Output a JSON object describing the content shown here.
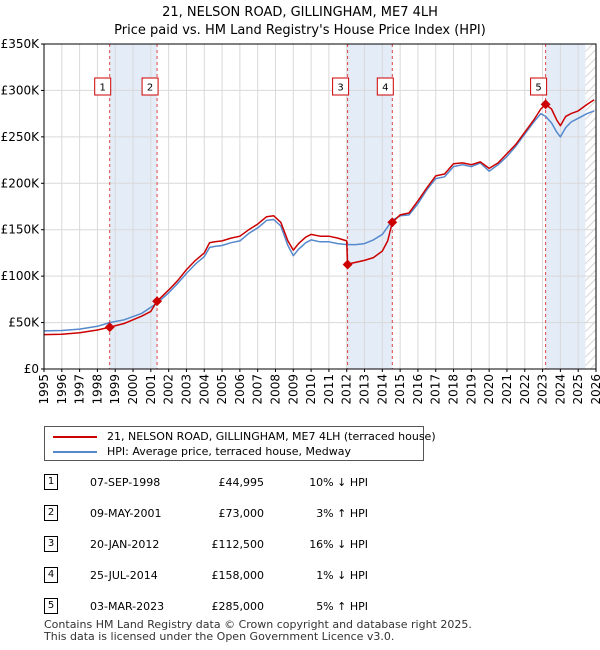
{
  "chart_data": {
    "type": "line",
    "title": "21, NELSON ROAD, GILLINGHAM, ME7 4LH",
    "subtitle": "Price paid vs. HM Land Registry's House Price Index (HPI)",
    "xlim": [
      1995,
      2026
    ],
    "ylim": [
      0,
      350000
    ],
    "yticks": [
      0,
      50000,
      100000,
      150000,
      200000,
      250000,
      300000,
      350000
    ],
    "ytick_labels": [
      "£0",
      "£50K",
      "£100K",
      "£150K",
      "£200K",
      "£250K",
      "£300K",
      "£350K"
    ],
    "xticks": [
      "1995",
      "1996",
      "1997",
      "1998",
      "1999",
      "2000",
      "2001",
      "2002",
      "2003",
      "2004",
      "2005",
      "2006",
      "2007",
      "2008",
      "2009",
      "2010",
      "2011",
      "2012",
      "2013",
      "2014",
      "2015",
      "2016",
      "2017",
      "2018",
      "2019",
      "2020",
      "2021",
      "2022",
      "2023",
      "2024",
      "2025",
      "2026"
    ],
    "grid": true,
    "shaded_periods": [
      [
        1998.69,
        2001.35
      ],
      [
        2012.05,
        2014.56
      ],
      [
        2023.17,
        2025.4
      ]
    ],
    "hatch_from": 2025.4,
    "series": [
      {
        "name": "21, NELSON ROAD, GILLINGHAM, ME7 4LH (terraced house)",
        "color": "#cc0000",
        "x": [
          1995.0,
          1996.0,
          1997.0,
          1998.0,
          1998.69,
          1999.5,
          2000.5,
          2001.0,
          2001.35,
          2002.0,
          2002.5,
          2003.0,
          2003.5,
          2004.0,
          2004.3,
          2004.6,
          2005.0,
          2005.5,
          2006.0,
          2006.5,
          2007.0,
          2007.5,
          2007.9,
          2008.3,
          2008.7,
          2009.0,
          2009.3,
          2009.7,
          2010.0,
          2010.5,
          2011.0,
          2011.5,
          2012.0,
          2012.05,
          2012.3,
          2013.0,
          2013.5,
          2014.0,
          2014.3,
          2014.56,
          2015.0,
          2015.5,
          2016.0,
          2016.5,
          2017.0,
          2017.5,
          2018.0,
          2018.5,
          2019.0,
          2019.5,
          2020.0,
          2020.5,
          2021.0,
          2021.5,
          2022.0,
          2022.5,
          2022.9,
          2023.17,
          2023.5,
          2023.8,
          2024.0,
          2024.3,
          2024.6,
          2025.0,
          2025.5,
          2025.9
        ],
        "values": [
          37000,
          37500,
          39000,
          42000,
          44995,
          49000,
          57000,
          62000,
          73000,
          85000,
          95000,
          107000,
          117000,
          125000,
          136000,
          137000,
          138000,
          141000,
          143000,
          150000,
          156000,
          164000,
          165000,
          158000,
          138000,
          128000,
          135000,
          142000,
          145000,
          143000,
          143000,
          141000,
          138000,
          112500,
          114000,
          117000,
          120000,
          127000,
          138000,
          158000,
          166000,
          168000,
          181000,
          195000,
          208000,
          210000,
          221000,
          222000,
          220000,
          223000,
          216000,
          222000,
          232000,
          242000,
          255000,
          268000,
          280000,
          285000,
          280000,
          268000,
          262000,
          272000,
          275000,
          278000,
          285000,
          290000
        ]
      },
      {
        "name": "HPI: Average price, terraced house, Medway",
        "color": "#5588cc",
        "x": [
          1995.0,
          1996.0,
          1997.0,
          1998.0,
          1998.69,
          1999.5,
          2000.5,
          2001.35,
          2002.0,
          2002.5,
          2003.0,
          2003.5,
          2004.0,
          2004.3,
          2004.6,
          2005.0,
          2005.5,
          2006.0,
          2006.5,
          2007.0,
          2007.5,
          2007.9,
          2008.3,
          2008.7,
          2009.0,
          2009.3,
          2009.7,
          2010.0,
          2010.5,
          2011.0,
          2011.5,
          2012.05,
          2012.5,
          2013.0,
          2013.5,
          2014.0,
          2014.56,
          2015.0,
          2015.5,
          2016.0,
          2016.5,
          2017.0,
          2017.5,
          2018.0,
          2018.5,
          2019.0,
          2019.5,
          2020.0,
          2020.5,
          2021.0,
          2021.5,
          2022.0,
          2022.5,
          2022.9,
          2023.17,
          2023.5,
          2023.8,
          2024.0,
          2024.3,
          2024.6,
          2025.0,
          2025.5,
          2025.9
        ],
        "values": [
          41000,
          41500,
          43000,
          46000,
          50000,
          53000,
          60000,
          71000,
          82000,
          92000,
          103000,
          113000,
          121000,
          131000,
          132000,
          133000,
          136000,
          138000,
          146000,
          152000,
          160000,
          161000,
          154000,
          133000,
          122000,
          129000,
          136000,
          139000,
          137000,
          137000,
          135000,
          134000,
          134000,
          135000,
          139000,
          145000,
          160000,
          165000,
          166000,
          178000,
          193000,
          205000,
          207000,
          218000,
          220000,
          218000,
          222000,
          213000,
          220000,
          229000,
          240000,
          253000,
          266000,
          275000,
          272000,
          265000,
          255000,
          250000,
          260000,
          266000,
          270000,
          275000,
          278000
        ]
      }
    ],
    "markers": [
      {
        "label": "1",
        "x": 1998.69,
        "value": 44995
      },
      {
        "label": "2",
        "x": 2001.35,
        "value": 73000
      },
      {
        "label": "3",
        "x": 2012.05,
        "value": 112500
      },
      {
        "label": "4",
        "x": 2014.56,
        "value": 158000
      },
      {
        "label": "5",
        "x": 2023.17,
        "value": 285000
      }
    ]
  },
  "legend": {
    "property_label": "21, NELSON ROAD, GILLINGHAM, ME7 4LH (terraced house)",
    "hpi_label": "HPI: Average price, terraced house, Medway",
    "property_color": "#cc0000",
    "hpi_color": "#5588cc"
  },
  "transactions": [
    {
      "num": "1",
      "date": "07-SEP-1998",
      "price": "£44,995",
      "hpi": "10% ↓ HPI"
    },
    {
      "num": "2",
      "date": "09-MAY-2001",
      "price": "£73,000",
      "hpi": "3% ↑ HPI"
    },
    {
      "num": "3",
      "date": "20-JAN-2012",
      "price": "£112,500",
      "hpi": "16% ↓ HPI"
    },
    {
      "num": "4",
      "date": "25-JUL-2014",
      "price": "£158,000",
      "hpi": "1% ↓ HPI"
    },
    {
      "num": "5",
      "date": "03-MAR-2023",
      "price": "£285,000",
      "hpi": "5% ↑ HPI"
    }
  ],
  "footer": {
    "line1": "Contains HM Land Registry data © Crown copyright and database right 2025.",
    "line2": "This data is licensed under the Open Government Licence v3.0."
  }
}
